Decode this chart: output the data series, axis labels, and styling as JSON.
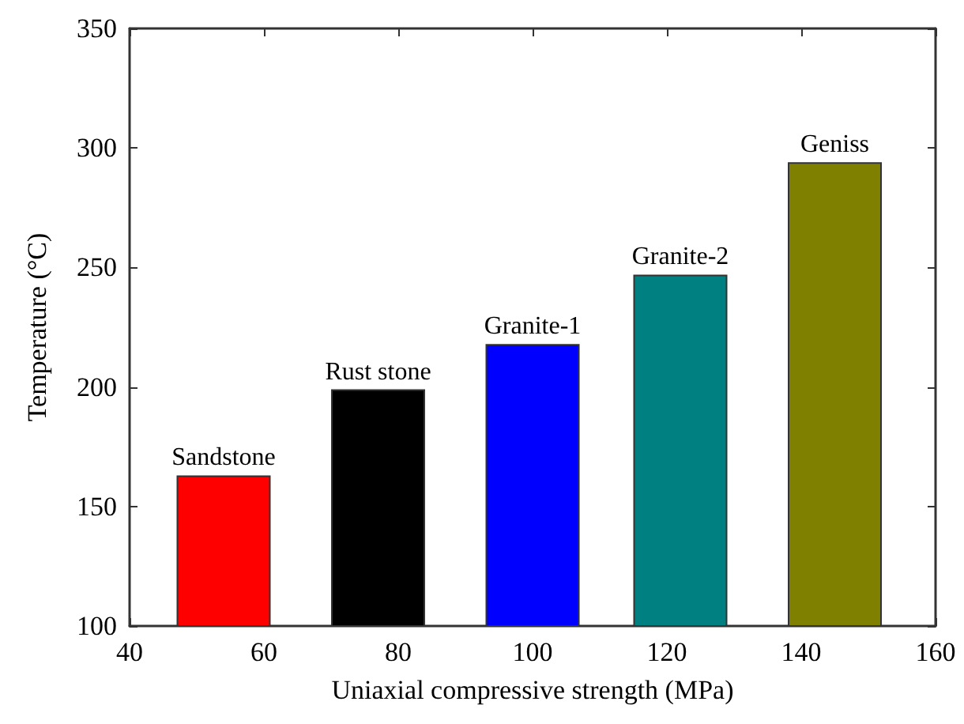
{
  "chart_data": {
    "type": "bar",
    "xlabel": "Uniaxial compressive strength (MPa)",
    "ylabel": "Temperature (°C)",
    "x": [
      54,
      77,
      100,
      122,
      145
    ],
    "values": [
      163,
      199,
      218,
      247,
      294
    ],
    "colors": [
      "#ff0000",
      "#000000",
      "#0000ff",
      "#008080",
      "#808000"
    ],
    "annotations": [
      {
        "text": "Sandstone",
        "x": 54,
        "y": 163
      },
      {
        "text": "Rust stone",
        "x": 77,
        "y": 199
      },
      {
        "text": "Granite-1",
        "x": 100,
        "y": 218
      },
      {
        "text": "Granite-2",
        "x": 122,
        "y": 247
      },
      {
        "text": "Geniss",
        "x": 145,
        "y": 294
      }
    ],
    "xlim": [
      40,
      160
    ],
    "xticks": [
      40,
      60,
      80,
      100,
      120,
      140,
      160
    ],
    "ylim": [
      100,
      350
    ],
    "yticks": [
      100,
      150,
      200,
      250,
      300,
      350
    ],
    "grid": false
  }
}
